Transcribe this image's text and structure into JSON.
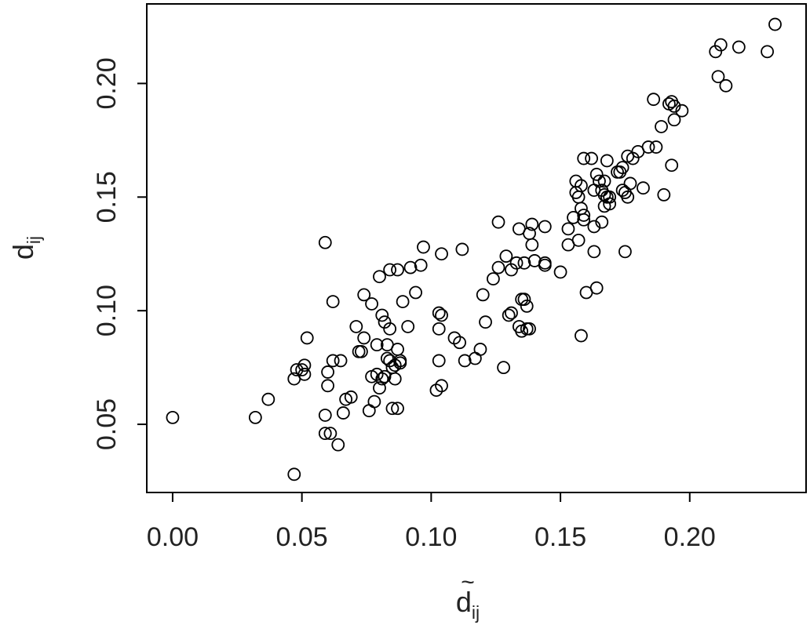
{
  "chart_data": {
    "type": "scatter",
    "title": "",
    "xlabel": "d",
    "xlabel_subscript": "ij",
    "xlabel_accent": "~",
    "ylabel": "d",
    "ylabel_subscript": "ij",
    "xlim": [
      -0.01,
      0.245
    ],
    "ylim": [
      0.02,
      0.235
    ],
    "grid": false,
    "x_ticks": [
      0.0,
      0.05,
      0.1,
      0.15,
      0.2
    ],
    "x_tick_labels": [
      "0.00",
      "0.05",
      "0.10",
      "0.15",
      "0.20"
    ],
    "y_ticks": [
      0.05,
      0.1,
      0.15,
      0.2
    ],
    "y_tick_labels": [
      "0.05",
      "0.10",
      "0.15",
      "0.20"
    ],
    "marker": "open-circle",
    "marker_color": "#000000",
    "points": [
      [
        0.0,
        0.053
      ],
      [
        0.032,
        0.053
      ],
      [
        0.037,
        0.061
      ],
      [
        0.047,
        0.028
      ],
      [
        0.047,
        0.07
      ],
      [
        0.048,
        0.074
      ],
      [
        0.05,
        0.074
      ],
      [
        0.051,
        0.072
      ],
      [
        0.051,
        0.076
      ],
      [
        0.052,
        0.088
      ],
      [
        0.059,
        0.046
      ],
      [
        0.059,
        0.054
      ],
      [
        0.059,
        0.13
      ],
      [
        0.06,
        0.073
      ],
      [
        0.06,
        0.067
      ],
      [
        0.061,
        0.046
      ],
      [
        0.062,
        0.078
      ],
      [
        0.062,
        0.104
      ],
      [
        0.064,
        0.041
      ],
      [
        0.065,
        0.078
      ],
      [
        0.066,
        0.055
      ],
      [
        0.067,
        0.061
      ],
      [
        0.069,
        0.062
      ],
      [
        0.071,
        0.093
      ],
      [
        0.072,
        0.082
      ],
      [
        0.073,
        0.082
      ],
      [
        0.074,
        0.088
      ],
      [
        0.074,
        0.107
      ],
      [
        0.076,
        0.056
      ],
      [
        0.077,
        0.071
      ],
      [
        0.077,
        0.103
      ],
      [
        0.078,
        0.06
      ],
      [
        0.079,
        0.072
      ],
      [
        0.079,
        0.085
      ],
      [
        0.08,
        0.066
      ],
      [
        0.08,
        0.115
      ],
      [
        0.081,
        0.07
      ],
      [
        0.081,
        0.098
      ],
      [
        0.082,
        0.071
      ],
      [
        0.082,
        0.095
      ],
      [
        0.083,
        0.085
      ],
      [
        0.083,
        0.079
      ],
      [
        0.084,
        0.078
      ],
      [
        0.084,
        0.092
      ],
      [
        0.084,
        0.118
      ],
      [
        0.085,
        0.057
      ],
      [
        0.085,
        0.075
      ],
      [
        0.086,
        0.076
      ],
      [
        0.086,
        0.07
      ],
      [
        0.087,
        0.057
      ],
      [
        0.087,
        0.118
      ],
      [
        0.087,
        0.083
      ],
      [
        0.088,
        0.077
      ],
      [
        0.088,
        0.078
      ],
      [
        0.089,
        0.104
      ],
      [
        0.091,
        0.093
      ],
      [
        0.092,
        0.119
      ],
      [
        0.094,
        0.108
      ],
      [
        0.096,
        0.12
      ],
      [
        0.097,
        0.128
      ],
      [
        0.102,
        0.065
      ],
      [
        0.103,
        0.078
      ],
      [
        0.103,
        0.099
      ],
      [
        0.103,
        0.092
      ],
      [
        0.104,
        0.125
      ],
      [
        0.104,
        0.067
      ],
      [
        0.104,
        0.098
      ],
      [
        0.109,
        0.088
      ],
      [
        0.111,
        0.086
      ],
      [
        0.112,
        0.127
      ],
      [
        0.113,
        0.078
      ],
      [
        0.117,
        0.079
      ],
      [
        0.119,
        0.083
      ],
      [
        0.12,
        0.107
      ],
      [
        0.121,
        0.095
      ],
      [
        0.124,
        0.114
      ],
      [
        0.126,
        0.119
      ],
      [
        0.126,
        0.139
      ],
      [
        0.128,
        0.075
      ],
      [
        0.129,
        0.124
      ],
      [
        0.13,
        0.098
      ],
      [
        0.131,
        0.099
      ],
      [
        0.131,
        0.118
      ],
      [
        0.133,
        0.121
      ],
      [
        0.134,
        0.136
      ],
      [
        0.134,
        0.093
      ],
      [
        0.135,
        0.105
      ],
      [
        0.135,
        0.091
      ],
      [
        0.136,
        0.105
      ],
      [
        0.136,
        0.121
      ],
      [
        0.137,
        0.092
      ],
      [
        0.137,
        0.102
      ],
      [
        0.138,
        0.092
      ],
      [
        0.138,
        0.134
      ],
      [
        0.139,
        0.138
      ],
      [
        0.139,
        0.129
      ],
      [
        0.14,
        0.122
      ],
      [
        0.144,
        0.12
      ],
      [
        0.144,
        0.121
      ],
      [
        0.144,
        0.137
      ],
      [
        0.15,
        0.117
      ],
      [
        0.153,
        0.129
      ],
      [
        0.153,
        0.136
      ],
      [
        0.155,
        0.141
      ],
      [
        0.156,
        0.157
      ],
      [
        0.156,
        0.152
      ],
      [
        0.157,
        0.131
      ],
      [
        0.157,
        0.15
      ],
      [
        0.158,
        0.089
      ],
      [
        0.158,
        0.145
      ],
      [
        0.158,
        0.155
      ],
      [
        0.159,
        0.142
      ],
      [
        0.159,
        0.14
      ],
      [
        0.159,
        0.167
      ],
      [
        0.16,
        0.108
      ],
      [
        0.162,
        0.167
      ],
      [
        0.163,
        0.137
      ],
      [
        0.163,
        0.153
      ],
      [
        0.163,
        0.126
      ],
      [
        0.164,
        0.16
      ],
      [
        0.164,
        0.11
      ],
      [
        0.165,
        0.157
      ],
      [
        0.166,
        0.153
      ],
      [
        0.166,
        0.139
      ],
      [
        0.167,
        0.151
      ],
      [
        0.167,
        0.157
      ],
      [
        0.167,
        0.146
      ],
      [
        0.168,
        0.15
      ],
      [
        0.168,
        0.166
      ],
      [
        0.169,
        0.147
      ],
      [
        0.169,
        0.15
      ],
      [
        0.172,
        0.161
      ],
      [
        0.173,
        0.161
      ],
      [
        0.174,
        0.153
      ],
      [
        0.174,
        0.163
      ],
      [
        0.175,
        0.126
      ],
      [
        0.175,
        0.152
      ],
      [
        0.176,
        0.168
      ],
      [
        0.176,
        0.15
      ],
      [
        0.177,
        0.156
      ],
      [
        0.178,
        0.167
      ],
      [
        0.18,
        0.17
      ],
      [
        0.182,
        0.154
      ],
      [
        0.184,
        0.172
      ],
      [
        0.186,
        0.193
      ],
      [
        0.187,
        0.172
      ],
      [
        0.189,
        0.181
      ],
      [
        0.19,
        0.151
      ],
      [
        0.192,
        0.191
      ],
      [
        0.193,
        0.192
      ],
      [
        0.193,
        0.164
      ],
      [
        0.194,
        0.19
      ],
      [
        0.194,
        0.184
      ],
      [
        0.197,
        0.188
      ],
      [
        0.21,
        0.214
      ],
      [
        0.211,
        0.203
      ],
      [
        0.212,
        0.217
      ],
      [
        0.214,
        0.199
      ],
      [
        0.219,
        0.216
      ],
      [
        0.23,
        0.214
      ],
      [
        0.233,
        0.226
      ]
    ]
  }
}
